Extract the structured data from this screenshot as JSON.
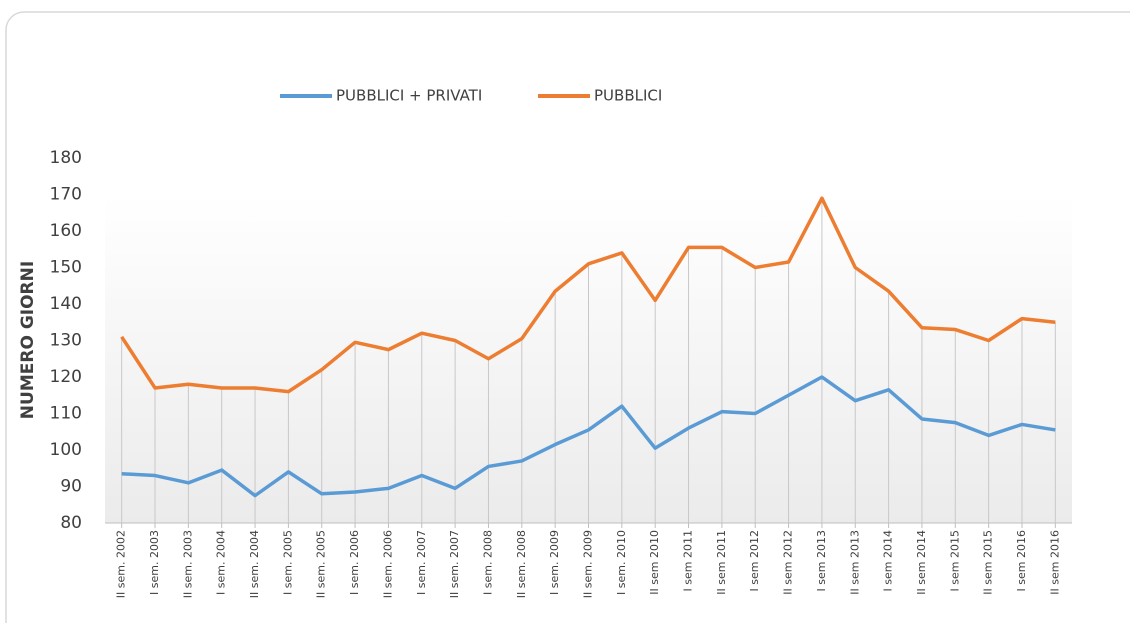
{
  "chart_data": {
    "type": "line",
    "y_label": "NUMERO GIORNI",
    "categories": [
      "II sem. 2002",
      "I sem. 2003",
      "II sem. 2003",
      "I sem. 2004",
      "II sem. 2004",
      "I sem. 2005",
      "II sem. 2005",
      "I sem. 2006",
      "II sem. 2006",
      "I sem. 2007",
      "II sem. 2007",
      "I sem. 2008",
      "II sem. 2008",
      "I sem. 2009",
      "II sem. 2009",
      "I sem. 2010",
      "II sem 2010",
      "I sem 2011",
      "II sem 2011",
      "I sem 2012",
      "II sem 2012",
      "I sem 2013",
      "II sem 2013",
      "I sem 2014",
      "II sem 2014",
      "I sem 2015",
      "II sem 2015",
      "I sem 2016",
      "II sem 2016"
    ],
    "series": [
      {
        "name": "PUBBLICI + PRIVATI",
        "color": "#5b9bd5",
        "values": [
          93.5,
          93,
          91,
          94.5,
          87.5,
          94,
          88,
          88.5,
          89.5,
          93,
          89.5,
          95.5,
          97,
          101.5,
          105.5,
          112,
          100.5,
          106,
          110.5,
          110,
          115,
          120,
          113.5,
          116.5,
          108.5,
          107.5,
          104,
          107,
          105.5
        ]
      },
      {
        "name": "PUBBLICI",
        "color": "#ed7d31",
        "values": [
          131,
          117,
          118,
          117,
          117,
          116,
          122,
          129.5,
          127.5,
          132,
          130,
          125,
          130.5,
          143.5,
          151,
          154,
          141,
          155.5,
          155.5,
          150,
          151.5,
          169,
          150,
          143.5,
          133.5,
          133,
          130,
          136,
          135
        ]
      }
    ],
    "ylim": [
      80,
      180
    ],
    "yticks": [
      80,
      90,
      100,
      110,
      120,
      130,
      140,
      150,
      160,
      170,
      180
    ],
    "drop_lines": true,
    "legend": "top"
  }
}
